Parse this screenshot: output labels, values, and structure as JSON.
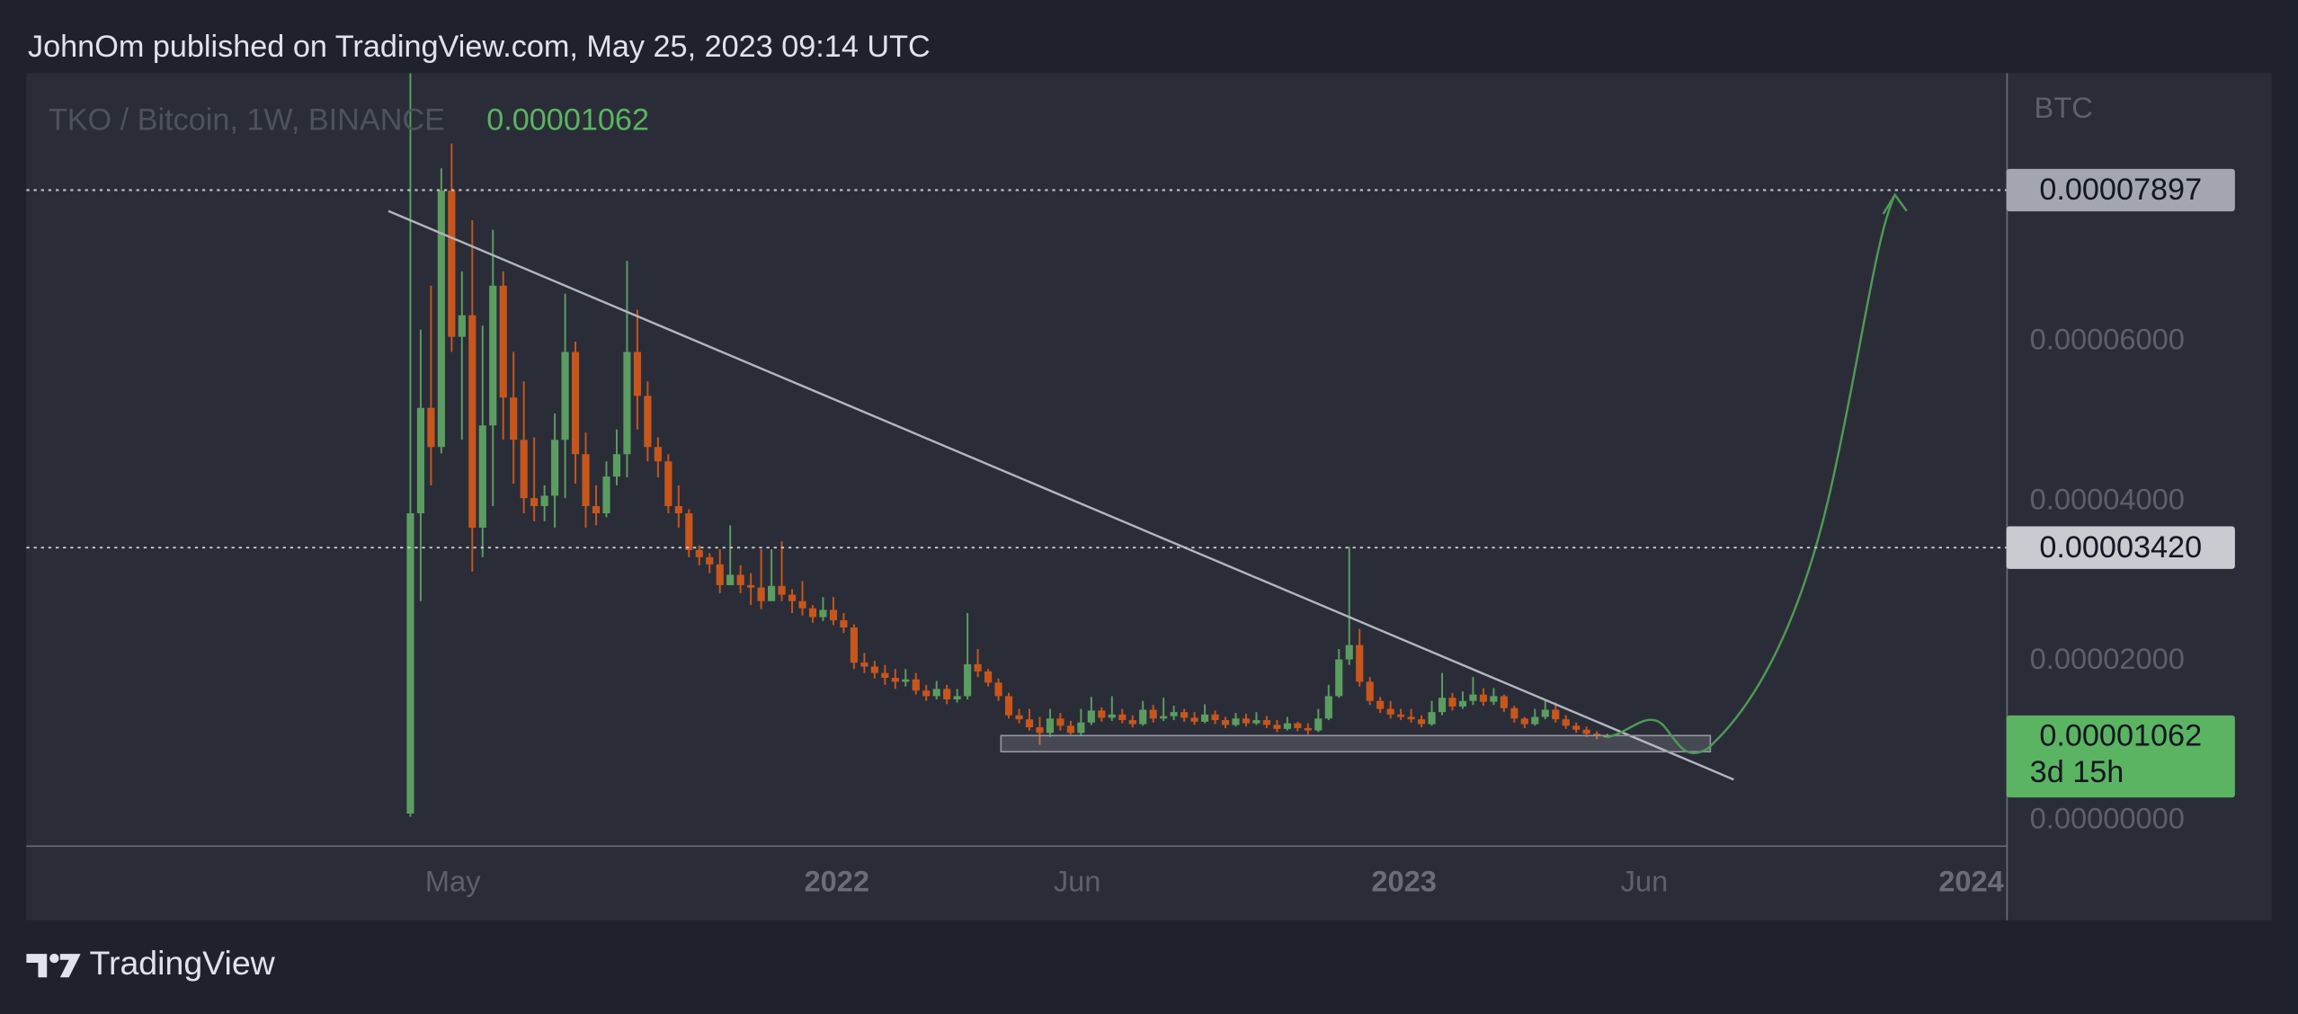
{
  "header": {
    "published": "JohnOm published on TradingView.com, May 25, 2023 09:14 UTC"
  },
  "footer": {
    "brand": "TradingView"
  },
  "chart_data": {
    "type": "candlestick",
    "title": "TKO / Bitcoin, 1W, BINANCE",
    "currency": "BTC",
    "last_price": 1.062e-05,
    "countdown": "3d 15h",
    "levels": [
      7.897e-05,
      {
        "value": 3.42e-05,
        "label": "0.00003420"
      }
    ],
    "up_color": "#5b9d61",
    "down_color": "#c8561c",
    "grid": false,
    "ylim": [
      -3.1e-06,
      9.36e-05
    ],
    "yticks": [
      {
        "value": 0,
        "label": "0.00000000"
      },
      {
        "value": 2e-05,
        "label": "0.00002000"
      },
      {
        "value": 4e-05,
        "label": "0.00004000"
      },
      {
        "value": 6e-05,
        "label": "0.00006000"
      }
    ],
    "x_labels": [
      "May",
      "2022",
      "Jun",
      "2023",
      "Jun",
      "2024"
    ],
    "open": [
      9e-07,
      3.85e-05,
      5.17e-05,
      4.68e-05,
      7.89e-05,
      6.06e-05,
      6.33e-05,
      3.67e-05,
      4.95e-05,
      6.7e-05,
      5.3e-05,
      4.77e-05,
      4.04e-05,
      3.94e-05,
      4.07e-05,
      4.77e-05,
      5.87e-05,
      4.59e-05,
      3.94e-05,
      3.85e-05,
      4.31e-05,
      4.59e-05,
      5.87e-05,
      5.32e-05,
      4.68e-05,
      4.5e-05,
      3.94e-05,
      3.85e-05,
      3.39e-05,
      3.3e-05,
      3.21e-05,
      2.95e-05,
      3.08e-05,
      2.95e-05,
      2.92e-05,
      2.75e-05,
      2.94e-05,
      2.83e-05,
      2.75e-05,
      2.66e-05,
      2.55e-05,
      2.64e-05,
      2.51e-05,
      2.42e-05,
      1.98e-05,
      1.93e-05,
      1.85e-05,
      1.79e-05,
      1.74e-05,
      1.77e-05,
      1.63e-05,
      1.56e-05,
      1.65e-05,
      1.52e-05,
      1.56e-05,
      1.96e-05,
      1.87e-05,
      1.73e-05,
      1.56e-05,
      1.32e-05,
      1.27e-05,
      1.17e-05,
      1.1e-05,
      1.28e-05,
      1.19e-05,
      1.1e-05,
      1.23e-05,
      1.38e-05,
      1.29e-05,
      1.33e-05,
      1.26e-05,
      1.21e-05,
      1.39e-05,
      1.28e-05,
      1.31e-05,
      1.36e-05,
      1.29e-05,
      1.24e-05,
      1.33e-05,
      1.26e-05,
      1.2e-05,
      1.28e-05,
      1.22e-05,
      1.26e-05,
      1.2e-05,
      1.15e-05,
      1.22e-05,
      1.16e-05,
      1.13e-05,
      1.28e-05,
      1.56e-05,
      2.02e-05,
      2.2e-05,
      1.74e-05,
      1.5e-05,
      1.4e-05,
      1.33e-05,
      1.3e-05,
      1.27e-05,
      1.21e-05,
      1.36e-05,
      1.54e-05,
      1.43e-05,
      1.5e-05,
      1.58e-05,
      1.49e-05,
      1.56e-05,
      1.41e-05,
      1.28e-05,
      1.21e-05,
      1.3e-05,
      1.39e-05,
      1.27e-05,
      1.19e-05,
      1.14e-05,
      1.09e-05,
      1.06e-05
    ],
    "high": [
      9.5e-05,
      6.15e-05,
      6.7e-05,
      8.17e-05,
      8.48e-05,
      6.88e-05,
      7.52e-05,
      6.2e-05,
      7.4e-05,
      6.88e-05,
      5.87e-05,
      5.5e-05,
      4.8e-05,
      4.2e-05,
      5.1e-05,
      6.6e-05,
      6e-05,
      4.86e-05,
      4.2e-05,
      4.5e-05,
      4.9e-05,
      7.01e-05,
      6.4e-05,
      5.5e-05,
      4.8e-05,
      4.59e-05,
      4.2e-05,
      3.9e-05,
      3.45e-05,
      3.35e-05,
      3.4e-05,
      3.7e-05,
      3.2e-05,
      3.1e-05,
      3.4e-05,
      3.4e-05,
      3.5e-05,
      2.9e-05,
      3e-05,
      2.7e-05,
      2.8e-05,
      2.8e-05,
      2.6e-05,
      2.46e-05,
      2.1e-05,
      2e-05,
      1.95e-05,
      1.9e-05,
      1.9e-05,
      1.85e-05,
      1.7e-05,
      1.75e-05,
      1.7e-05,
      1.65e-05,
      2.6e-05,
      2.15e-05,
      1.9e-05,
      1.78e-05,
      1.6e-05,
      1.4e-05,
      1.4e-05,
      1.3e-05,
      1.4e-05,
      1.35e-05,
      1.25e-05,
      1.4e-05,
      1.55e-05,
      1.42e-05,
      1.56e-05,
      1.4e-05,
      1.32e-05,
      1.5e-05,
      1.45e-05,
      1.54e-05,
      1.44e-05,
      1.4e-05,
      1.36e-05,
      1.46e-05,
      1.38e-05,
      1.3e-05,
      1.35e-05,
      1.34e-05,
      1.36e-05,
      1.31e-05,
      1.26e-05,
      1.3e-05,
      1.24e-05,
      1.22e-05,
      1.4e-05,
      1.7e-05,
      2.15e-05,
      3.43e-05,
      2.4e-05,
      1.8e-05,
      1.55e-05,
      1.5e-05,
      1.4e-05,
      1.4e-05,
      1.32e-05,
      1.5e-05,
      1.85e-05,
      1.6e-05,
      1.62e-05,
      1.8e-05,
      1.66e-05,
      1.66e-05,
      1.58e-05,
      1.44e-05,
      1.3e-05,
      1.4e-05,
      1.5e-05,
      1.48e-05,
      1.32e-05,
      1.23e-05,
      1.18e-05,
      1.12e-05,
      1.09e-05
    ],
    "low": [
      5e-07,
      2.75e-05,
      4.2e-05,
      4.6e-05,
      5.87e-05,
      4.77e-05,
      3.12e-05,
      3.3e-05,
      3.94e-05,
      4.77e-05,
      4.22e-05,
      3.85e-05,
      3.75e-05,
      3.75e-05,
      3.67e-05,
      4.04e-05,
      4.22e-05,
      3.67e-05,
      3.7e-05,
      3.8e-05,
      4.2e-05,
      4.3e-05,
      4.9e-05,
      4.5e-05,
      4.3e-05,
      3.85e-05,
      3.67e-05,
      3.3e-05,
      3.2e-05,
      3.1e-05,
      2.85e-05,
      2.95e-05,
      2.85e-05,
      2.7e-05,
      2.65e-05,
      2.75e-05,
      2.75e-05,
      2.6e-05,
      2.57e-05,
      2.48e-05,
      2.5e-05,
      2.45e-05,
      2.35e-05,
      1.9e-05,
      1.85e-05,
      1.78e-05,
      1.7e-05,
      1.65e-05,
      1.68e-05,
      1.58e-05,
      1.5e-05,
      1.52e-05,
      1.46e-05,
      1.48e-05,
      1.52e-05,
      1.8e-05,
      1.68e-05,
      1.5e-05,
      1.28e-05,
      1.22e-05,
      1.13e-05,
      9.5e-06,
      1.05e-05,
      1.13e-05,
      1.08e-05,
      1.06e-05,
      1.2e-05,
      1.24e-05,
      1.25e-05,
      1.22e-05,
      1.17e-05,
      1.19e-05,
      1.23e-05,
      1.25e-05,
      1.26e-05,
      1.24e-05,
      1.2e-05,
      1.22e-05,
      1.21e-05,
      1.16e-05,
      1.18e-05,
      1.18e-05,
      1.2e-05,
      1.16e-05,
      1.11e-05,
      1.13e-05,
      1.12e-05,
      1.08e-05,
      1.11e-05,
      1.26e-05,
      1.54e-05,
      1.95e-05,
      1.68e-05,
      1.45e-05,
      1.35e-05,
      1.28e-05,
      1.26e-05,
      1.23e-05,
      1.17e-05,
      1.19e-05,
      1.32e-05,
      1.38e-05,
      1.4e-05,
      1.45e-05,
      1.44e-05,
      1.45e-05,
      1.36e-05,
      1.23e-05,
      1.16e-05,
      1.19e-05,
      1.27e-05,
      1.23e-05,
      1.15e-05,
      1.1e-05,
      1.05e-05,
      1.02e-05,
      1.04e-05
    ],
    "close": [
      3.85e-05,
      5.17e-05,
      4.68e-05,
      7.89e-05,
      6.06e-05,
      6.33e-05,
      3.67e-05,
      4.95e-05,
      6.7e-05,
      5.3e-05,
      4.77e-05,
      4.04e-05,
      3.94e-05,
      4.07e-05,
      4.77e-05,
      5.87e-05,
      4.59e-05,
      3.94e-05,
      3.85e-05,
      4.31e-05,
      4.59e-05,
      5.87e-05,
      5.32e-05,
      4.68e-05,
      4.5e-05,
      3.94e-05,
      3.85e-05,
      3.39e-05,
      3.3e-05,
      3.21e-05,
      2.95e-05,
      3.08e-05,
      2.95e-05,
      2.92e-05,
      2.75e-05,
      2.94e-05,
      2.83e-05,
      2.75e-05,
      2.66e-05,
      2.55e-05,
      2.64e-05,
      2.51e-05,
      2.42e-05,
      1.98e-05,
      1.93e-05,
      1.85e-05,
      1.79e-05,
      1.74e-05,
      1.77e-05,
      1.63e-05,
      1.56e-05,
      1.65e-05,
      1.52e-05,
      1.56e-05,
      1.96e-05,
      1.87e-05,
      1.73e-05,
      1.56e-05,
      1.32e-05,
      1.27e-05,
      1.17e-05,
      1.1e-05,
      1.28e-05,
      1.19e-05,
      1.1e-05,
      1.23e-05,
      1.38e-05,
      1.29e-05,
      1.33e-05,
      1.26e-05,
      1.21e-05,
      1.39e-05,
      1.28e-05,
      1.31e-05,
      1.36e-05,
      1.29e-05,
      1.24e-05,
      1.33e-05,
      1.26e-05,
      1.2e-05,
      1.28e-05,
      1.22e-05,
      1.26e-05,
      1.2e-05,
      1.15e-05,
      1.22e-05,
      1.16e-05,
      1.13e-05,
      1.28e-05,
      1.56e-05,
      2.02e-05,
      2.2e-05,
      1.74e-05,
      1.5e-05,
      1.4e-05,
      1.33e-05,
      1.3e-05,
      1.27e-05,
      1.21e-05,
      1.36e-05,
      1.54e-05,
      1.43e-05,
      1.5e-05,
      1.58e-05,
      1.49e-05,
      1.56e-05,
      1.41e-05,
      1.28e-05,
      1.21e-05,
      1.3e-05,
      1.39e-05,
      1.27e-05,
      1.19e-05,
      1.14e-05,
      1.09e-05,
      1.06e-05,
      1.062e-05
    ]
  }
}
